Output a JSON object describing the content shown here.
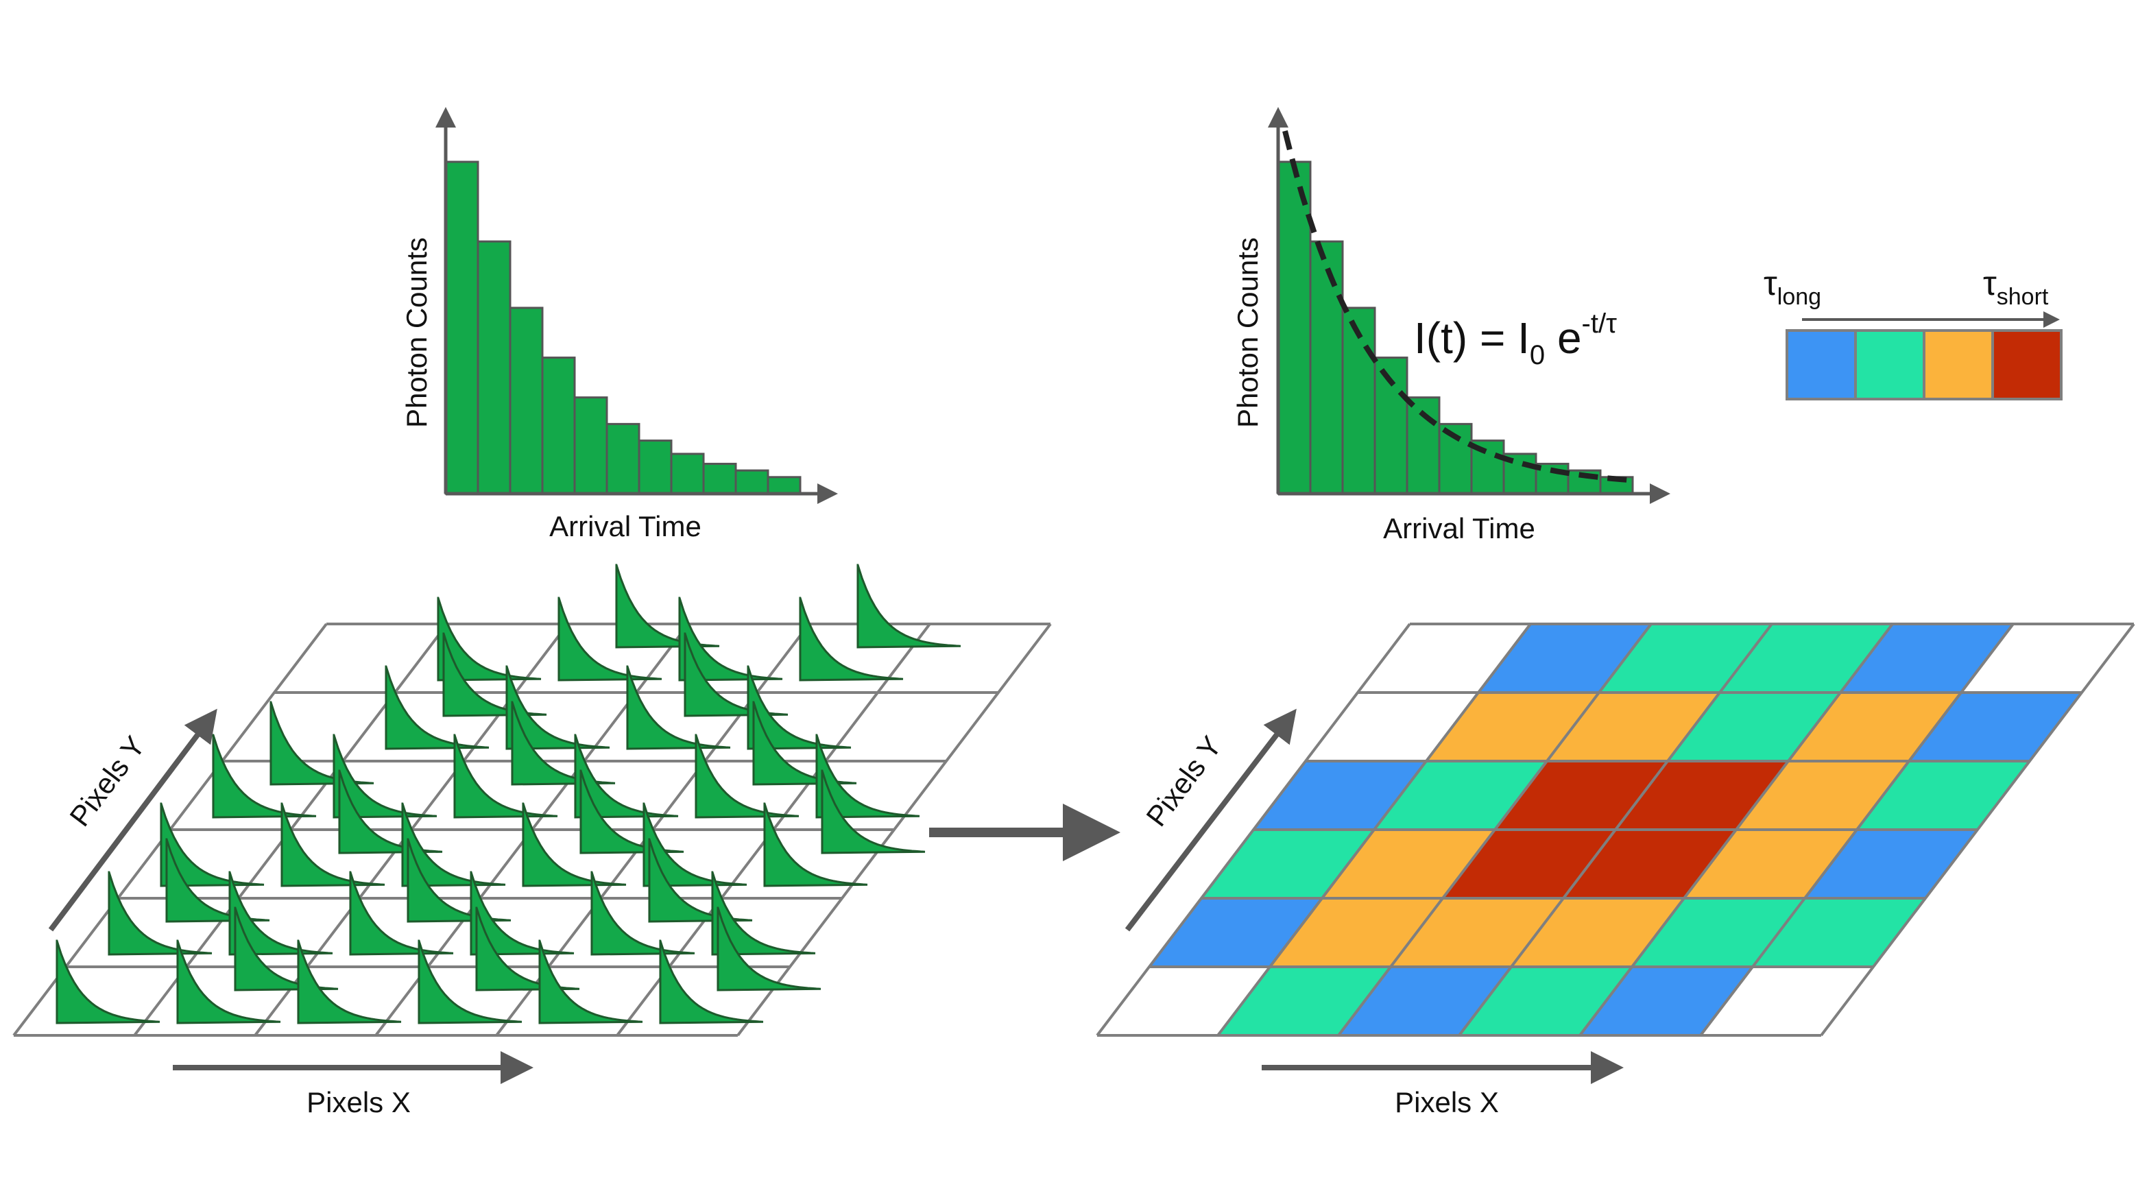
{
  "colors": {
    "bar_fill": "#13a94a",
    "bar_stroke": "#555555",
    "axis": "#595959",
    "grid": "#7f7f7f",
    "fit_curve": "#222222",
    "arrow": "#595959"
  },
  "histogram_left": {
    "xlabel": "Arrival Time",
    "ylabel": "Photon Counts",
    "bar_values": [
      100,
      76,
      56,
      41,
      29,
      21,
      16,
      12,
      9,
      7,
      5
    ]
  },
  "histogram_right": {
    "xlabel": "Arrival Time",
    "ylabel": "Photon Counts",
    "bar_values": [
      100,
      76,
      56,
      41,
      29,
      21,
      16,
      12,
      9,
      7,
      5
    ],
    "equation": {
      "lhs": "I(t) = I",
      "i_sub": "0",
      "base": " e",
      "exponent": "-t/τ"
    }
  },
  "legend": {
    "long_symbol": "τ",
    "long_sub": "long",
    "short_symbol": "τ",
    "short_sub": "short",
    "colors": [
      "#3d94f4",
      "#23e3a5",
      "#fbb33c",
      "#c32b05"
    ]
  },
  "left_grid": {
    "x_label": "Pixels X",
    "y_label": "Pixels Y",
    "cols": 6,
    "rows": 6
  },
  "right_grid": {
    "x_label": "Pixels X",
    "y_label": "Pixels Y",
    "cols": 6,
    "rows": 6,
    "cells": [
      [
        "white",
        "blue",
        "teal",
        "teal",
        "blue",
        "white"
      ],
      [
        "white",
        "orange",
        "orange",
        "teal",
        "orange",
        "blue"
      ],
      [
        "blue",
        "teal",
        "red",
        "red",
        "orange",
        "teal"
      ],
      [
        "teal",
        "orange",
        "red",
        "red",
        "orange",
        "blue"
      ],
      [
        "blue",
        "orange",
        "orange",
        "orange",
        "teal",
        "teal"
      ],
      [
        "white",
        "teal",
        "blue",
        "teal",
        "blue",
        "white"
      ]
    ],
    "palette": {
      "white": "#ffffff",
      "blue": "#3d94f4",
      "teal": "#23e3a5",
      "orange": "#fbb33c",
      "red": "#c32b05"
    }
  }
}
